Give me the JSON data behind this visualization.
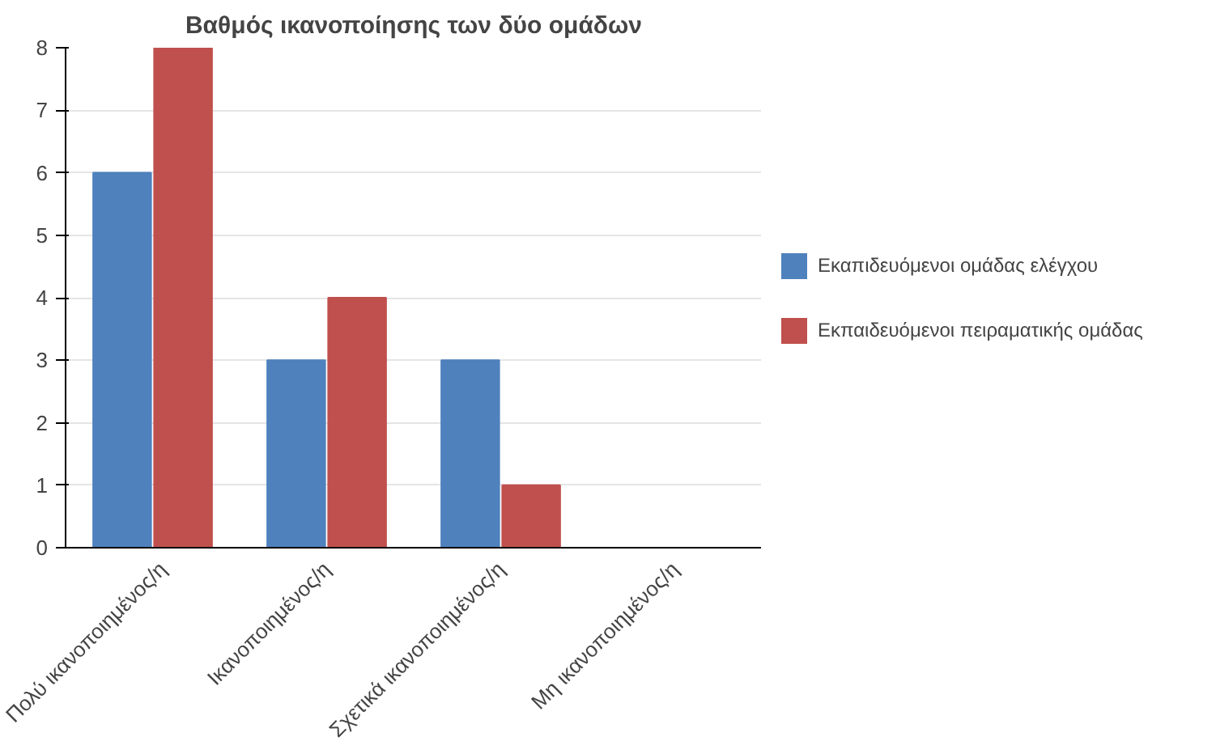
{
  "chart_data": {
    "type": "bar",
    "title": "Βαθμός ικανοποίησης των δύο ομάδων",
    "categories": [
      "Πολύ ικανοποιημένος/η",
      "Ικανοποιημένος/η",
      "Σχετικά ικανοποιημένος/η",
      "Μη ικανοποιημένος/η"
    ],
    "series": [
      {
        "name": "Εκαπιδευόμενοι ομάδας ελέγχου",
        "color": "#4f81bd",
        "values": [
          6,
          3,
          3,
          0
        ]
      },
      {
        "name": "Εκπαιδευόμενοι πειραματικής ομάδας",
        "color": "#c0504d",
        "values": [
          8,
          4,
          1,
          0
        ]
      }
    ],
    "ylim": [
      0,
      8
    ],
    "yticks": [
      0,
      1,
      2,
      3,
      4,
      5,
      6,
      7,
      8
    ],
    "grid": "y",
    "legend": "right"
  }
}
